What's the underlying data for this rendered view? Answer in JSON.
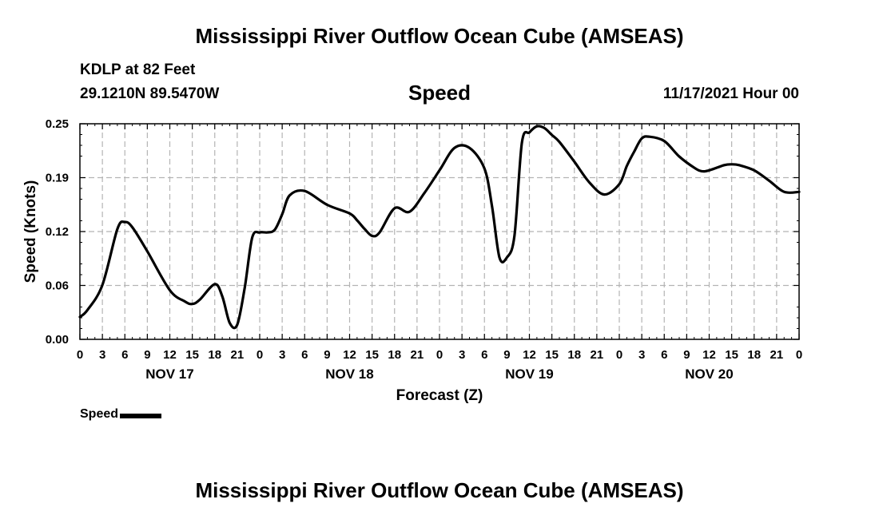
{
  "header": {
    "title": "Mississippi River Outflow Ocean Cube (AMSEAS)",
    "station": "KDLP at 82 Feet",
    "coordinates": "29.1210N  89.5470W",
    "variable": "Speed",
    "datetime": "11/17/2021 Hour 00"
  },
  "footer": {
    "title": "Mississippi River Outflow Ocean Cube (AMSEAS)"
  },
  "legend": {
    "label": "Speed"
  },
  "chart_data": {
    "type": "line",
    "title": "Speed",
    "xlabel": "Forecast (Z)",
    "ylabel": "Speed (Knots)",
    "xlim": [
      0,
      96
    ],
    "ylim": [
      0,
      0.25
    ],
    "grid": true,
    "line_color": "#000000",
    "grid_color": "#b4b4b4",
    "x_tick_step_hours": 3,
    "x_tick_labels": [
      "0",
      "3",
      "6",
      "9",
      "12",
      "15",
      "18",
      "21",
      "0",
      "3",
      "6",
      "9",
      "12",
      "15",
      "18",
      "21",
      "0",
      "3",
      "6",
      "9",
      "12",
      "15",
      "18",
      "21",
      "0",
      "3",
      "6",
      "9",
      "12",
      "15",
      "18",
      "21",
      "0"
    ],
    "y_ticks": [
      0,
      0.0625,
      0.125,
      0.1875,
      0.25
    ],
    "y_tick_labels": [
      "0.00",
      "0.06",
      "0.12",
      "0.19",
      "0.25"
    ],
    "day_labels": [
      {
        "label": "NOV 17",
        "x": 12
      },
      {
        "label": "NOV 18",
        "x": 36
      },
      {
        "label": "NOV 19",
        "x": 60
      },
      {
        "label": "NOV 20",
        "x": 84
      }
    ],
    "series": [
      {
        "name": "Speed",
        "x": [
          0,
          1,
          3,
          5,
          6,
          7,
          9,
          12,
          14,
          15,
          16,
          18,
          19,
          20,
          21,
          22,
          23,
          24,
          25,
          26,
          27,
          28,
          30,
          33,
          36,
          37,
          38,
          39,
          40,
          42,
          44,
          46,
          48,
          50,
          52,
          54,
          55,
          56,
          57,
          58,
          59,
          60,
          61,
          62,
          63,
          64,
          66,
          68,
          70,
          72,
          73,
          74,
          75,
          76,
          78,
          80,
          82,
          83,
          84,
          86,
          87,
          88,
          90,
          92,
          94,
          96
        ],
        "y": [
          0.026,
          0.034,
          0.063,
          0.128,
          0.136,
          0.13,
          0.102,
          0.057,
          0.044,
          0.041,
          0.046,
          0.064,
          0.05,
          0.019,
          0.017,
          0.06,
          0.118,
          0.124,
          0.124,
          0.127,
          0.145,
          0.167,
          0.172,
          0.156,
          0.146,
          0.138,
          0.128,
          0.12,
          0.124,
          0.152,
          0.148,
          0.17,
          0.196,
          0.222,
          0.222,
          0.198,
          0.155,
          0.095,
          0.095,
          0.12,
          0.228,
          0.24,
          0.247,
          0.245,
          0.237,
          0.229,
          0.206,
          0.182,
          0.168,
          0.18,
          0.201,
          0.218,
          0.233,
          0.235,
          0.23,
          0.212,
          0.199,
          0.195,
          0.196,
          0.202,
          0.203,
          0.202,
          0.196,
          0.184,
          0.171,
          0.171
        ]
      }
    ]
  }
}
